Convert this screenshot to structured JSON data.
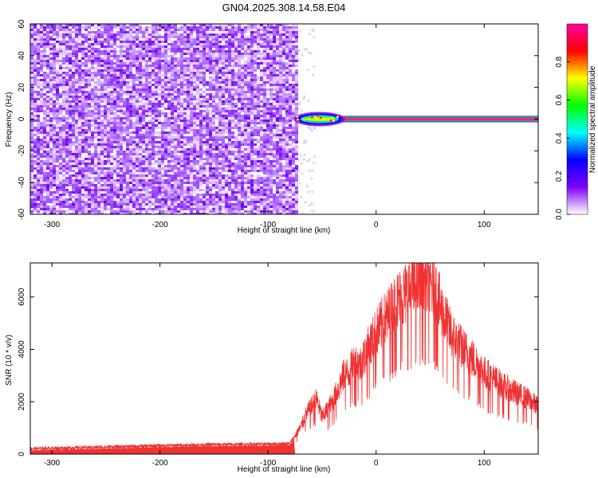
{
  "title": "GN04.2025.308.14.58.E04",
  "chart_data": [
    {
      "type": "heatmap",
      "xlabel": "Height of straight line (km)",
      "ylabel": "Frequency (Hz)",
      "xlim": [
        -320,
        150
      ],
      "ylim": [
        -60,
        60
      ],
      "xticks": [
        -300,
        -200,
        -100,
        0,
        100
      ],
      "yticks": [
        -60,
        -40,
        -20,
        0,
        20,
        40,
        60
      ],
      "grid": false,
      "noise_region": {
        "x_from": -320,
        "x_to": -73,
        "freq_from": -60,
        "freq_to": 60,
        "dominant_amplitude": 0.15
      },
      "signal_band": {
        "x_from": -73,
        "x_to": 150,
        "center_freq": 0,
        "peak_amplitude": 0.95
      },
      "colorbar": {
        "label": "Normalized spectral amplitude",
        "range": [
          0,
          1
        ],
        "ticks": [
          0.0,
          0.2,
          0.4,
          0.6,
          0.8
        ],
        "colors": [
          "#ffffff",
          "#8000ff",
          "#0000ff",
          "#00ffff",
          "#00ff00",
          "#ffff00",
          "#ff0000",
          "#ff00a0"
        ]
      }
    },
    {
      "type": "line",
      "xlabel": "Height of straight line (km)",
      "ylabel": "SNR (10 * v/v)",
      "xlim": [
        -320,
        150
      ],
      "ylim": [
        0,
        7300
      ],
      "xticks": [
        -300,
        -200,
        -100,
        0,
        100
      ],
      "yticks": [
        0,
        2000,
        4000,
        6000
      ],
      "grid": false,
      "series": [
        {
          "color": "#ee3333",
          "x": [
            -320,
            -300,
            -250,
            -200,
            -150,
            -100,
            -80,
            -70,
            -65,
            -60,
            -55,
            -50,
            -45,
            -40,
            -35,
            -30,
            -25,
            -20,
            -15,
            -10,
            -5,
            0,
            10,
            20,
            30,
            40,
            45,
            50,
            55,
            60,
            70,
            80,
            90,
            100,
            110,
            120,
            130,
            140,
            150
          ],
          "y": [
            200,
            220,
            270,
            320,
            360,
            380,
            400,
            1000,
            1500,
            1800,
            2100,
            1400,
            1700,
            2000,
            2500,
            3000,
            3100,
            3500,
            3400,
            3800,
            4200,
            4600,
            5200,
            5800,
            6200,
            6500,
            6600,
            6500,
            6200,
            5500,
            4500,
            4000,
            3600,
            3100,
            2800,
            2500,
            2300,
            2100,
            1800
          ]
        }
      ]
    }
  ]
}
